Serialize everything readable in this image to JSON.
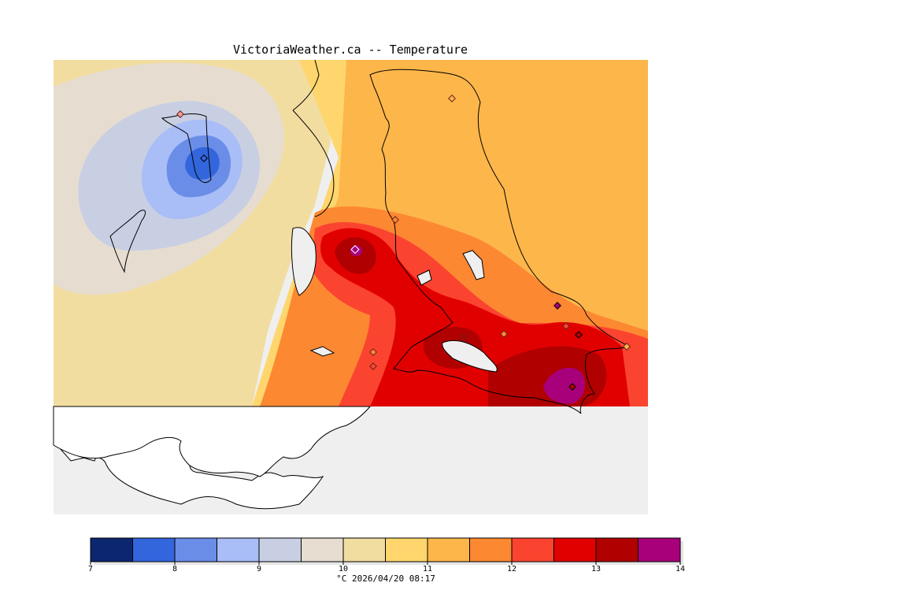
{
  "title": "VictoriaWeather.ca -- Temperature",
  "footer": "°C 2026/04/20 08:17",
  "legend": {
    "ticks": [
      "7",
      "8",
      "9",
      "10",
      "11",
      "12",
      "13",
      "14"
    ],
    "colors": [
      "#0d2670",
      "#3366dd",
      "#6a8de8",
      "#a9bdf7",
      "#c9cfe3",
      "#e6ddd0",
      "#f2dda0",
      "#fed66d",
      "#fdb64a",
      "#fd8832",
      "#fb4430",
      "#e10000",
      "#b00000",
      "#a8007a"
    ]
  },
  "map": {
    "sea_color": "#efefef",
    "coast_color": "#000000",
    "station_marker": "diamond-icon"
  }
}
